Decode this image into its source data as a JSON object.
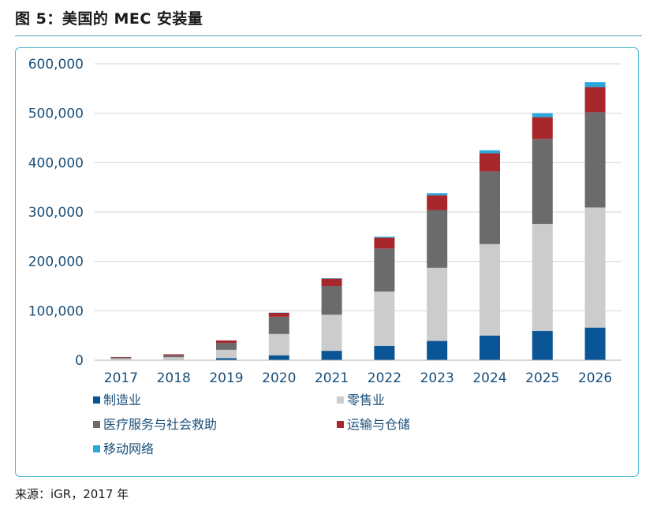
{
  "figure_title": "图 5：美国的 MEC 安装量",
  "source": "来源：iGR，2017 年",
  "chart_data": {
    "type": "bar",
    "stacked": true,
    "title": "图 5：美国的 MEC 安装量",
    "xlabel": "",
    "ylabel": "",
    "ylim": [
      0,
      600000
    ],
    "yticks": [
      0,
      100000,
      200000,
      300000,
      400000,
      500000,
      600000
    ],
    "ytick_labels": [
      "0",
      "100,000",
      "200,000",
      "300,000",
      "400,000",
      "500,000",
      "600,000"
    ],
    "grid": true,
    "legend_position": "bottom",
    "categories": [
      "2017",
      "2018",
      "2019",
      "2020",
      "2021",
      "2022",
      "2023",
      "2024",
      "2025",
      "2026"
    ],
    "series": [
      {
        "name": "制造业",
        "color": "#0a5596",
        "values": [
          500,
          1000,
          4000,
          10000,
          19000,
          29000,
          39000,
          50000,
          59000,
          66000
        ]
      },
      {
        "name": "零售业",
        "color": "#cccccc",
        "values": [
          3000,
          5000,
          17000,
          43000,
          73000,
          110000,
          148000,
          185000,
          217000,
          243000
        ]
      },
      {
        "name": "医疗服务与社会救助",
        "color": "#6b6b6b",
        "values": [
          2000,
          4000,
          14000,
          35000,
          58000,
          87000,
          117000,
          147000,
          172000,
          193000
        ]
      },
      {
        "name": "运输与仓储",
        "color": "#a8272d",
        "values": [
          1000,
          2000,
          5000,
          8000,
          15000,
          22000,
          30000,
          37000,
          44000,
          51000
        ]
      },
      {
        "name": "移动网络",
        "color": "#29a8dd",
        "values": [
          0,
          0,
          0,
          500,
          1000,
          2000,
          4000,
          6000,
          8000,
          10000
        ]
      }
    ]
  }
}
